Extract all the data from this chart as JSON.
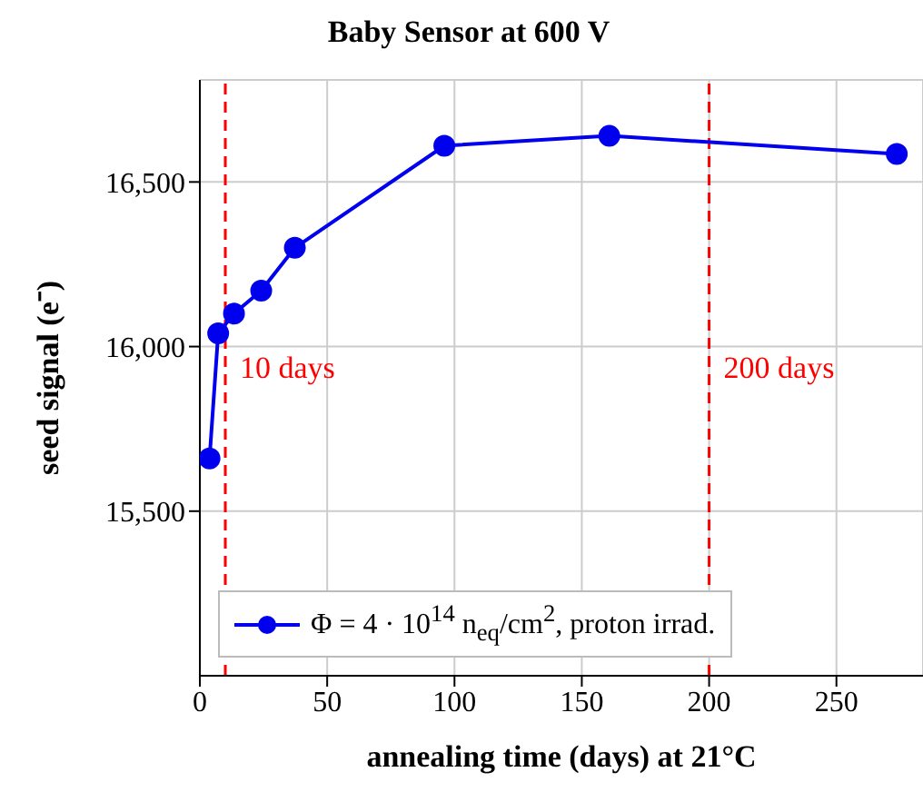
{
  "chart_data": {
    "type": "line",
    "title": "Baby Sensor at 600 V",
    "xlabel": "annealing time (days) at 21°C",
    "ylabel": "seed signal (e⁻)",
    "x": [
      3.8,
      7.2,
      13.4,
      24.1,
      37.3,
      96,
      160.8,
      273.7
    ],
    "series": [
      {
        "name": "Φ = 4 · 10$^{14}$ n$_{eq}$/cm$^{2}$, proton irrad.",
        "color": "#0000ee",
        "values": [
          15660,
          16040,
          16100,
          16170,
          16300,
          16610,
          16640,
          16585
        ]
      }
    ],
    "xlim": [
      0,
      284
    ],
    "xticks": [
      0,
      50,
      100,
      150,
      200,
      250
    ],
    "ylim": [
      15000,
      16810
    ],
    "yticks": [
      {
        "value": 15500,
        "label": "15,500"
      },
      {
        "value": 16000,
        "label": "16,000"
      },
      {
        "value": 16500,
        "label": "16,500"
      }
    ],
    "ref_lines": [
      {
        "axis": "x",
        "value": 10,
        "label": "10 days",
        "color": "#ff0000",
        "line_style": "dashed"
      },
      {
        "axis": "x",
        "value": 200,
        "label": "200 days",
        "color": "#ff0000",
        "line_style": "dashed"
      }
    ],
    "grid": true,
    "legend": "bottom left",
    "marker": "circle",
    "line_style": "solid"
  }
}
